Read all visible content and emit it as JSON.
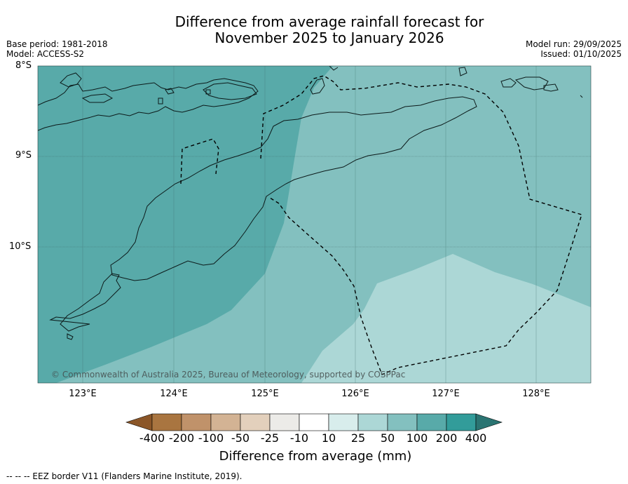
{
  "title": {
    "line1": "Difference from average rainfall forecast for",
    "line2": "November 2025 to January 2026"
  },
  "meta_left": {
    "base_period": "Base period: 1981-2018",
    "model": "Model: ACCESS-S2"
  },
  "meta_right": {
    "model_run": "Model run: 29/09/2025",
    "issued": "Issued: 01/10/2025"
  },
  "map": {
    "lat_labels": [
      "8°S",
      "9°S",
      "10°S"
    ],
    "lon_labels": [
      "123°E",
      "124°E",
      "125°E",
      "126°E",
      "127°E",
      "128°E"
    ],
    "copyright": "© Commonwealth of Australia 2025, Bureau of Meteorology, supported by COSPPac",
    "regions": [
      {
        "name": "west",
        "category": "100 to 200",
        "color": "#58aaa9"
      },
      {
        "name": "central-east",
        "category": "50 to 100",
        "color": "#83c0bf"
      },
      {
        "name": "south-east",
        "category": "25 to 50",
        "color": "#acd7d6"
      }
    ]
  },
  "colorbar": {
    "title": "Difference from average (mm)",
    "ticks": [
      "-400",
      "-200",
      "-100",
      "-50",
      "-25",
      "-10",
      "10",
      "25",
      "50",
      "100",
      "200",
      "400"
    ],
    "colors": [
      "#8b5628",
      "#a97540",
      "#c0926a",
      "#d3b394",
      "#e3d0bc",
      "#ecebe8",
      "#ffffff",
      "#d8edec",
      "#acd7d6",
      "#83c0bf",
      "#58aaa9",
      "#329c9a",
      "#2a7472"
    ]
  },
  "legend": {
    "eez": "--  --  -- EEZ border V11 (Flanders Marine Institute, 2019)."
  }
}
